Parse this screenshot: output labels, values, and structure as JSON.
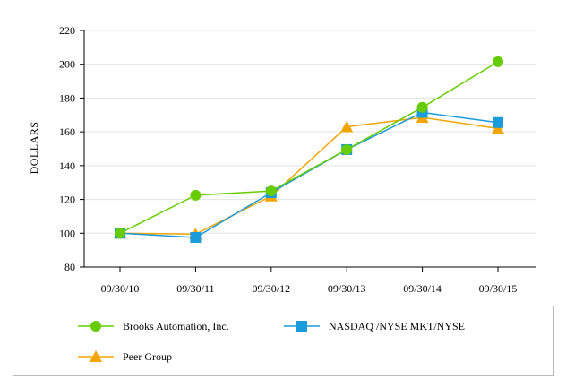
{
  "chart_data": {
    "type": "line",
    "title": "",
    "xlabel": "",
    "ylabel": "DOLLARS",
    "categories": [
      "09/30/10",
      "09/30/11",
      "09/30/12",
      "09/30/13",
      "09/30/14",
      "09/30/15"
    ],
    "ylim": [
      80,
      220
    ],
    "yticks": [
      80,
      100,
      120,
      140,
      160,
      180,
      200,
      220
    ],
    "grid": true,
    "legend_position": "bottom",
    "series": [
      {
        "name": "Brooks Automation, Inc.",
        "values": [
          100,
          122.5,
          125,
          149.5,
          174.5,
          201.5
        ],
        "color": "#66cc00",
        "marker": "circle"
      },
      {
        "name": "NASDAQ /NYSE MKT/NYSE",
        "values": [
          100,
          97.5,
          124,
          149.5,
          171.5,
          165.5
        ],
        "color": "#1a9bdb",
        "marker": "square"
      },
      {
        "name": "Peer Group",
        "values": [
          100,
          99.5,
          122,
          163,
          168.5,
          162
        ],
        "color": "#f2a500",
        "marker": "triangle"
      }
    ]
  }
}
